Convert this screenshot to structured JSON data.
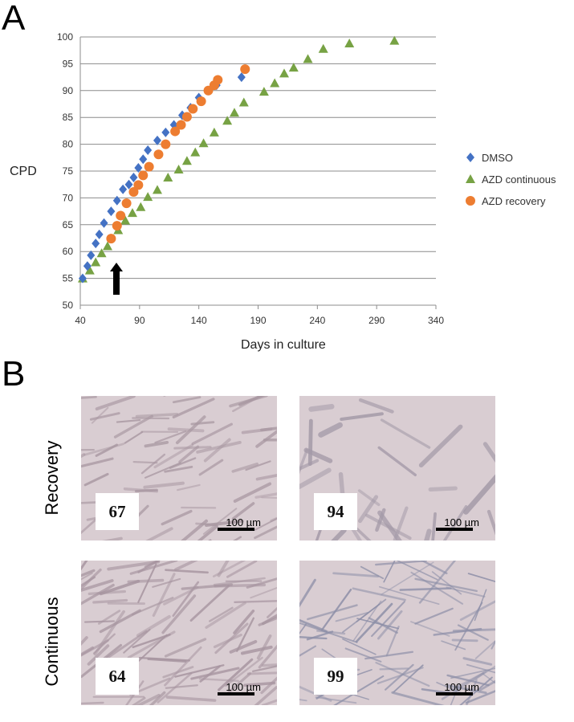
{
  "panels": {
    "a_label": "A",
    "b_label": "B"
  },
  "chart_data": {
    "type": "scatter",
    "xlabel": "Days in culture",
    "ylabel": "CPD",
    "xlim": [
      40,
      340
    ],
    "ylim": [
      50,
      100
    ],
    "xticks": [
      40,
      90,
      140,
      190,
      240,
      290,
      340
    ],
    "yticks": [
      50,
      55,
      60,
      65,
      70,
      75,
      80,
      85,
      90,
      95,
      100
    ],
    "grid": "horizontal",
    "legend_position": "right",
    "annotation": "arrow at day 65 marking treatment switch",
    "series": [
      {
        "name": "DMSO",
        "marker": "diamond",
        "color": "#4472C4",
        "x": [
          42,
          46,
          49,
          53,
          56,
          60,
          66,
          71,
          76,
          81,
          85,
          89,
          93,
          97,
          105,
          112,
          119,
          126,
          133,
          140,
          148,
          155,
          176
        ],
        "y": [
          55,
          57.3,
          59.3,
          61.5,
          63.2,
          65.3,
          67.5,
          69.5,
          71.6,
          72.5,
          73.8,
          75.6,
          77.2,
          78.9,
          80.7,
          82.2,
          83.6,
          85.4,
          86.8,
          88.7,
          90,
          91,
          92.5
        ]
      },
      {
        "name": "AZD continuous",
        "marker": "triangle",
        "color": "#77A244",
        "x": [
          42,
          48,
          53,
          58,
          63,
          72,
          78,
          84,
          91,
          97,
          105,
          114,
          123,
          130,
          137,
          144,
          153,
          164,
          170,
          178,
          195,
          204,
          212,
          220,
          232,
          245,
          267,
          305
        ],
        "y": [
          55,
          56.5,
          58,
          59.7,
          61,
          64,
          65.8,
          67.2,
          68.3,
          70.2,
          71.5,
          73.8,
          75.3,
          76.9,
          78.5,
          80.2,
          82.2,
          84.4,
          85.9,
          87.8,
          89.8,
          91.4,
          93.2,
          94.3,
          95.9,
          97.8,
          98.8,
          99.3
        ]
      },
      {
        "name": "AZD recovery",
        "marker": "circle",
        "color": "#ED7D31",
        "x": [
          66,
          71,
          74,
          79,
          85,
          89,
          93,
          98,
          106,
          112,
          120,
          125,
          130,
          135,
          142,
          148,
          153,
          156,
          179
        ],
        "y": [
          62.4,
          64.8,
          66.7,
          69,
          71.1,
          72.4,
          74.2,
          75.8,
          78.1,
          80,
          82.4,
          83.6,
          85.1,
          86.6,
          88,
          90,
          91,
          92,
          94
        ]
      }
    ]
  },
  "micrographs": [
    {
      "condition": "Recovery",
      "count": "67",
      "scale": "100 µm"
    },
    {
      "condition": "Recovery",
      "count": "94",
      "scale": "100 µm"
    },
    {
      "condition": "Continuous",
      "count": "64",
      "scale": "100 µm"
    },
    {
      "condition": "Continuous",
      "count": "99",
      "scale": "100 µm"
    }
  ],
  "row_labels": {
    "top": "Recovery",
    "bottom": "Continuous"
  }
}
